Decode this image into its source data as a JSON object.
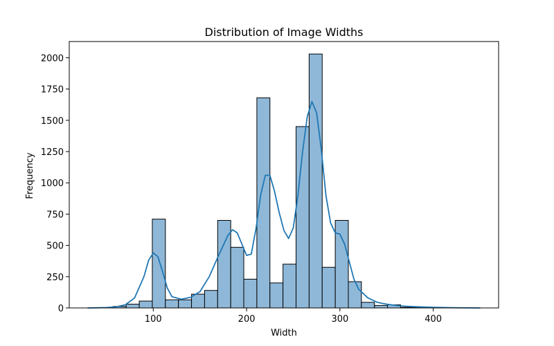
{
  "chart_data": {
    "type": "bar",
    "title": "Distribution of Image Widths",
    "xlabel": "Width",
    "ylabel": "Frequency",
    "xlim": [
      10,
      470
    ],
    "ylim": [
      0,
      2130
    ],
    "xticks": [
      100,
      200,
      300,
      400
    ],
    "yticks": [
      0,
      250,
      500,
      750,
      1000,
      1250,
      1500,
      1750,
      2000
    ],
    "grid": false,
    "colors": {
      "bar_fill": "#8fb8d8",
      "bar_edge": "#000000",
      "kde": "#1f77b4"
    },
    "bins": [
      {
        "x0": 57,
        "x1": 71,
        "count": 12
      },
      {
        "x0": 71,
        "x1": 85,
        "count": 30
      },
      {
        "x0": 85,
        "x1": 99,
        "count": 55
      },
      {
        "x0": 99,
        "x1": 113,
        "count": 710
      },
      {
        "x0": 113,
        "x1": 127,
        "count": 65
      },
      {
        "x0": 127,
        "x1": 141,
        "count": 65
      },
      {
        "x0": 141,
        "x1": 155,
        "count": 110
      },
      {
        "x0": 155,
        "x1": 169,
        "count": 140
      },
      {
        "x0": 169,
        "x1": 183,
        "count": 700
      },
      {
        "x0": 183,
        "x1": 197,
        "count": 485
      },
      {
        "x0": 197,
        "x1": 211,
        "count": 230
      },
      {
        "x0": 211,
        "x1": 225,
        "count": 1680
      },
      {
        "x0": 225,
        "x1": 239,
        "count": 200
      },
      {
        "x0": 239,
        "x1": 253,
        "count": 350
      },
      {
        "x0": 253,
        "x1": 267,
        "count": 1450
      },
      {
        "x0": 267,
        "x1": 281,
        "count": 2030
      },
      {
        "x0": 281,
        "x1": 295,
        "count": 325
      },
      {
        "x0": 295,
        "x1": 309,
        "count": 700
      },
      {
        "x0": 309,
        "x1": 323,
        "count": 210
      },
      {
        "x0": 323,
        "x1": 337,
        "count": 45
      },
      {
        "x0": 337,
        "x1": 351,
        "count": 20
      },
      {
        "x0": 351,
        "x1": 365,
        "count": 25
      },
      {
        "x0": 365,
        "x1": 379,
        "count": 5
      },
      {
        "x0": 379,
        "x1": 393,
        "count": 3
      },
      {
        "x0": 393,
        "x1": 407,
        "count": 2
      }
    ],
    "kde": {
      "x": [
        30,
        50,
        60,
        70,
        80,
        90,
        95,
        100,
        105,
        110,
        115,
        120,
        130,
        140,
        150,
        160,
        170,
        180,
        185,
        190,
        195,
        200,
        205,
        210,
        215,
        220,
        225,
        230,
        235,
        240,
        245,
        250,
        255,
        260,
        265,
        270,
        275,
        280,
        285,
        290,
        295,
        300,
        305,
        310,
        315,
        320,
        330,
        340,
        350,
        360,
        370,
        380,
        400,
        420,
        450
      ],
      "y": [
        0,
        3,
        8,
        25,
        80,
        250,
        380,
        440,
        410,
        290,
        160,
        90,
        70,
        85,
        130,
        250,
        420,
        580,
        625,
        600,
        510,
        420,
        430,
        630,
        900,
        1060,
        1060,
        930,
        760,
        620,
        555,
        640,
        900,
        1250,
        1530,
        1650,
        1560,
        1270,
        900,
        680,
        600,
        590,
        510,
        370,
        230,
        150,
        80,
        45,
        30,
        20,
        14,
        10,
        5,
        2,
        0
      ]
    }
  }
}
